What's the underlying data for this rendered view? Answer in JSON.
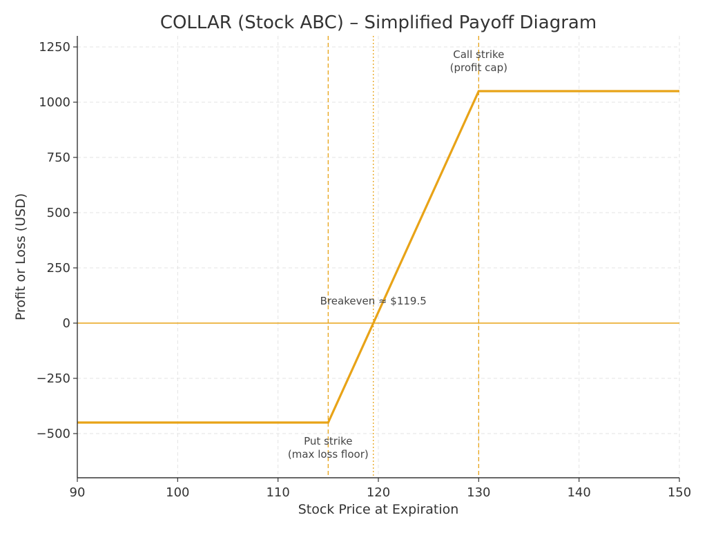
{
  "chart_data": {
    "type": "line",
    "title": "COLLAR (Stock ABC) – Simplified Payoff Diagram",
    "xlabel": "Stock Price at Expiration",
    "ylabel": "Profit or Loss (USD)",
    "xlim": [
      90,
      150
    ],
    "ylim": [
      -700,
      1300
    ],
    "xticks": [
      90,
      100,
      110,
      120,
      130,
      140,
      150
    ],
    "yticks": [
      -500,
      -250,
      0,
      250,
      500,
      750,
      1000,
      1250
    ],
    "ytick_labels": [
      "−500",
      "−250",
      "0",
      "250",
      "500",
      "750",
      "1000",
      "1250"
    ],
    "grid": true,
    "series": [
      {
        "x": [
          90,
          115,
          130,
          150
        ],
        "y": [
          -450,
          -450,
          1050,
          1050
        ],
        "color": "#E8A317"
      }
    ],
    "reference_lines": [
      {
        "orientation": "horizontal",
        "value": 0,
        "style": "solid",
        "color": "#E8A317"
      },
      {
        "orientation": "vertical",
        "value": 115,
        "style": "dashed",
        "color": "#E8A317"
      },
      {
        "orientation": "vertical",
        "value": 130,
        "style": "dashed",
        "color": "#E8A317"
      },
      {
        "orientation": "vertical",
        "value": 119.5,
        "style": "dotted",
        "color": "#E8A317"
      }
    ],
    "annotations": [
      {
        "lines": [
          "Call strike",
          "(profit cap)"
        ],
        "x": 130,
        "y": 1200
      },
      {
        "lines": [
          "Put strike",
          "(max loss floor)"
        ],
        "x": 115,
        "y": -550
      },
      {
        "lines": [
          "Breakeven ≈ $119.5"
        ],
        "x": 119.5,
        "y": 85
      }
    ]
  }
}
